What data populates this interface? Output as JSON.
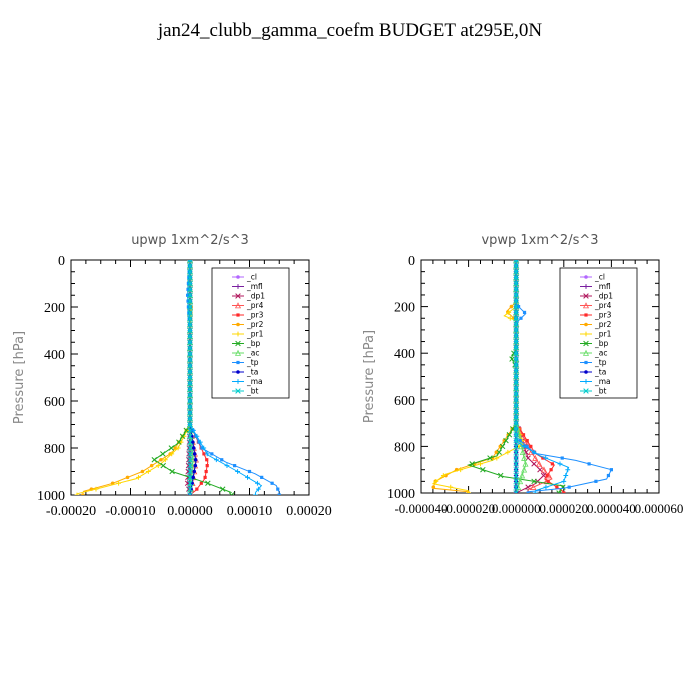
{
  "title": "jan24_clubb_gamma_coefm  BUDGET at295E,0N",
  "chart_data": [
    {
      "type": "line",
      "title": "upwp   1xm^2/s^3",
      "ylabel": "Pressure [hPa]",
      "xlim": [
        -0.0002,
        0.0002
      ],
      "ylim": [
        1000,
        0
      ],
      "xticks": [
        "-0.00020",
        "-0.00010",
        "0.00000",
        "0.00010",
        "0.00020"
      ],
      "yticks": [
        "0",
        "200",
        "400",
        "600",
        "800",
        "1000"
      ],
      "legend_position": "top-right",
      "series": [
        {
          "name": "_cl",
          "color": "#b266ff",
          "points": [
            [
              0,
              0
            ],
            [
              0,
              200
            ],
            [
              0,
              400
            ],
            [
              0,
              600
            ],
            [
              0,
              800
            ],
            [
              0,
              1000
            ]
          ]
        },
        {
          "name": "_mfl",
          "color": "#7a1fa0",
          "points": [
            [
              0,
              0
            ],
            [
              0,
              200
            ],
            [
              0,
              400
            ],
            [
              0,
              600
            ],
            [
              0,
              800
            ],
            [
              0,
              1000
            ]
          ]
        },
        {
          "name": "_dp1",
          "color": "#b0175c",
          "points": [
            [
              0,
              0
            ],
            [
              0,
              400
            ],
            [
              0,
              700
            ],
            [
              -2e-06,
              850
            ],
            [
              -4e-06,
              950
            ],
            [
              0,
              1000
            ]
          ]
        },
        {
          "name": "_pr4",
          "color": "#ff5555",
          "points": [
            [
              0,
              0
            ],
            [
              0,
              700
            ],
            [
              5e-06,
              780
            ],
            [
              1e-05,
              850
            ],
            [
              5e-06,
              940
            ],
            [
              0,
              1000
            ]
          ]
        },
        {
          "name": "_pr3",
          "color": "#ff2a2a",
          "points": [
            [
              0,
              0
            ],
            [
              0,
              700
            ],
            [
              1.5e-05,
              780
            ],
            [
              3e-05,
              860
            ],
            [
              2.5e-05,
              930
            ],
            [
              1e-05,
              980
            ],
            [
              0,
              1000
            ]
          ]
        },
        {
          "name": "_pr2",
          "color": "#ffaa00",
          "points": [
            [
              0,
              0
            ],
            [
              0,
              180
            ],
            [
              2e-06,
              200
            ],
            [
              0,
              300
            ],
            [
              0,
              700
            ],
            [
              -3e-05,
              820
            ],
            [
              -8e-05,
              900
            ],
            [
              -0.00013,
              950
            ],
            [
              -0.00018,
              985
            ]
          ]
        },
        {
          "name": "_pr1",
          "color": "#ffd700",
          "points": [
            [
              0,
              0
            ],
            [
              0,
              700
            ],
            [
              -2e-05,
              800
            ],
            [
              -5e-05,
              870
            ],
            [
              -9e-05,
              930
            ],
            [
              -0.00015,
              970
            ],
            [
              -0.00019,
              995
            ]
          ]
        },
        {
          "name": "_bp",
          "color": "#22aa22",
          "points": [
            [
              0,
              0
            ],
            [
              0,
              700
            ],
            [
              -2e-05,
              780
            ],
            [
              -6e-05,
              850
            ],
            [
              -3e-05,
              900
            ],
            [
              3e-05,
              950
            ],
            [
              7e-05,
              990
            ]
          ]
        },
        {
          "name": "_ac",
          "color": "#66dd66",
          "points": [
            [
              0,
              0
            ],
            [
              0,
              700
            ],
            [
              5e-06,
              850
            ],
            [
              0,
              1000
            ]
          ]
        },
        {
          "name": "_tp",
          "color": "#1e90ff",
          "points": [
            [
              0,
              0
            ],
            [
              -4e-06,
              150
            ],
            [
              0,
              300
            ],
            [
              0,
              700
            ],
            [
              2e-05,
              800
            ],
            [
              6e-05,
              860
            ],
            [
              0.00011,
              910
            ],
            [
              0.000145,
              960
            ],
            [
              0.00015,
              990
            ]
          ]
        },
        {
          "name": "_ta",
          "color": "#0000cc",
          "points": [
            [
              0,
              0
            ],
            [
              0,
              400
            ],
            [
              0,
              700
            ],
            [
              1e-05,
              860
            ],
            [
              0,
              1000
            ]
          ]
        },
        {
          "name": "_ma",
          "color": "#00aaff",
          "points": [
            [
              0,
              0
            ],
            [
              0,
              700
            ],
            [
              3e-05,
              830
            ],
            [
              8e-05,
              900
            ],
            [
              0.00012,
              960
            ],
            [
              0.00011,
              990
            ]
          ]
        },
        {
          "name": "_bt",
          "color": "#00cccc",
          "points": [
            [
              0,
              0
            ],
            [
              0,
              1000
            ]
          ]
        }
      ]
    },
    {
      "type": "line",
      "title": "vpwp   1xm^2/s^3",
      "ylabel": "Pressure [hPa]",
      "xlim": [
        -4e-05,
        6e-05
      ],
      "ylim": [
        1000,
        0
      ],
      "xticks": [
        "-0.000040",
        "-0.000020",
        "0.000000",
        "0.000020",
        "0.000040",
        "0.000060"
      ],
      "yticks": [
        "0",
        "200",
        "400",
        "600",
        "800",
        "1000"
      ],
      "legend_position": "top-right",
      "series": [
        {
          "name": "_cl",
          "color": "#b266ff",
          "points": [
            [
              0,
              0
            ],
            [
              0,
              200
            ],
            [
              0,
              400
            ],
            [
              0,
              600
            ],
            [
              0,
              800
            ],
            [
              0,
              1000
            ]
          ]
        },
        {
          "name": "_mfl",
          "color": "#7a1fa0",
          "points": [
            [
              0,
              0
            ],
            [
              0,
              200
            ],
            [
              0,
              400
            ],
            [
              0,
              600
            ],
            [
              0,
              800
            ],
            [
              0,
              1000
            ]
          ]
        },
        {
          "name": "_dp1",
          "color": "#b0175c",
          "points": [
            [
              0,
              0
            ],
            [
              0,
              700
            ],
            [
              5e-06,
              850
            ],
            [
              1.2e-05,
              920
            ],
            [
              8e-06,
              960
            ],
            [
              0,
              1000
            ]
          ]
        },
        {
          "name": "_pr4",
          "color": "#ff5555",
          "points": [
            [
              0,
              0
            ],
            [
              0,
              700
            ],
            [
              6e-06,
              820
            ],
            [
              1e-05,
              880
            ],
            [
              1.5e-05,
              940
            ],
            [
              5e-06,
              985
            ]
          ]
        },
        {
          "name": "_pr3",
          "color": "#ff2a2a",
          "points": [
            [
              0,
              0
            ],
            [
              0,
              700
            ],
            [
              8e-06,
              830
            ],
            [
              1.6e-05,
              880
            ],
            [
              1.2e-05,
              940
            ],
            [
              2e-05,
              995
            ]
          ]
        },
        {
          "name": "_pr2",
          "color": "#ffaa00",
          "points": [
            [
              0,
              0
            ],
            [
              0,
              180
            ],
            [
              -4e-06,
              220
            ],
            [
              0,
              260
            ],
            [
              0,
              700
            ],
            [
              -1e-05,
              850
            ],
            [
              -2.5e-05,
              900
            ],
            [
              -3.4e-05,
              950
            ],
            [
              -3.5e-05,
              980
            ],
            [
              -2e-05,
              995
            ]
          ]
        },
        {
          "name": "_pr1",
          "color": "#ffd700",
          "points": [
            [
              0,
              0
            ],
            [
              0,
              200
            ],
            [
              -5e-06,
              240
            ],
            [
              0,
              260
            ],
            [
              0,
              700
            ],
            [
              3e-06,
              790
            ],
            [
              -1e-05,
              860
            ],
            [
              -3e-05,
              920
            ],
            [
              -3.5e-05,
              960
            ],
            [
              -2e-05,
              990
            ]
          ]
        },
        {
          "name": "_bp",
          "color": "#22aa22",
          "points": [
            [
              0,
              0
            ],
            [
              0,
              380
            ],
            [
              -2e-06,
              420
            ],
            [
              0,
              460
            ],
            [
              0,
              700
            ],
            [
              -8e-06,
              840
            ],
            [
              -2e-05,
              880
            ],
            [
              -5e-06,
              930
            ],
            [
              2e-05,
              970
            ],
            [
              1.8e-05,
              995
            ]
          ]
        },
        {
          "name": "_ac",
          "color": "#66dd66",
          "points": [
            [
              0,
              0
            ],
            [
              0,
              700
            ],
            [
              4e-06,
              880
            ],
            [
              0,
              1000
            ]
          ]
        },
        {
          "name": "_tp",
          "color": "#1e90ff",
          "points": [
            [
              0,
              0
            ],
            [
              0,
              190
            ],
            [
              4e-06,
              230
            ],
            [
              0,
              270
            ],
            [
              0,
              760
            ],
            [
              8e-06,
              830
            ],
            [
              2.5e-05,
              860
            ],
            [
              4e-05,
              900
            ],
            [
              3.8e-05,
              940
            ],
            [
              2e-05,
              980
            ],
            [
              5e-06,
              995
            ]
          ]
        },
        {
          "name": "_ta",
          "color": "#0000cc",
          "points": [
            [
              0,
              0
            ],
            [
              0,
              400
            ],
            [
              0,
              1000
            ]
          ]
        },
        {
          "name": "_ma",
          "color": "#00aaff",
          "points": [
            [
              0,
              0
            ],
            [
              0,
              780
            ],
            [
              1e-05,
              840
            ],
            [
              2.2e-05,
              890
            ],
            [
              2e-05,
              950
            ],
            [
              8e-06,
              990
            ]
          ]
        },
        {
          "name": "_bt",
          "color": "#00cccc",
          "points": [
            [
              0,
              0
            ],
            [
              0,
              1000
            ]
          ]
        }
      ]
    }
  ]
}
